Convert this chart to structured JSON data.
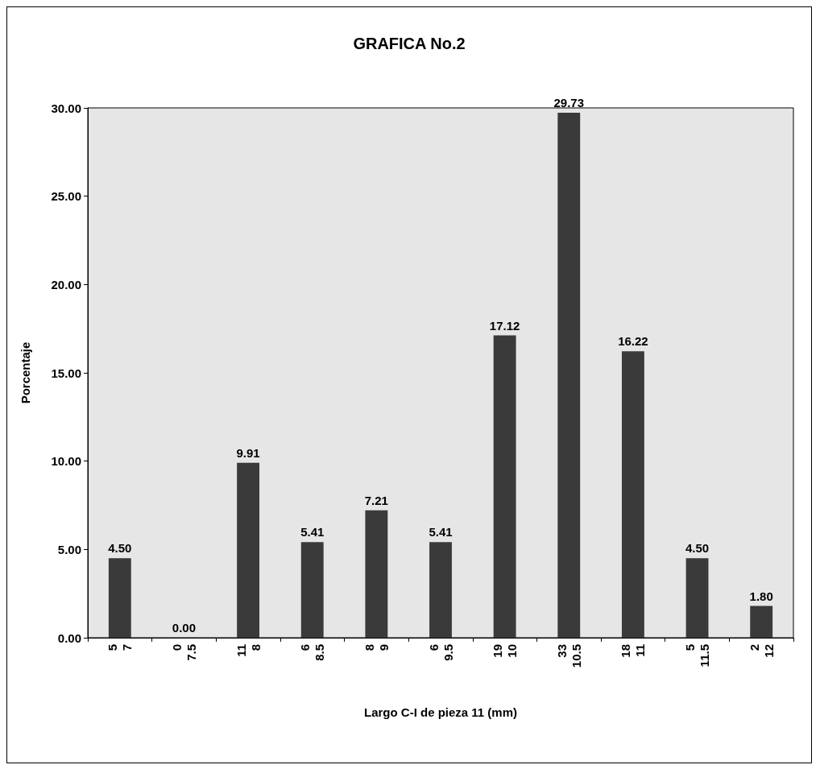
{
  "chart_data": {
    "type": "bar",
    "title": "GRAFICA No.2",
    "xlabel": "Largo C-I de pieza 11 (mm)",
    "ylabel": "Porcentaje",
    "categories": [
      "5\n7",
      "0\n7.5",
      "11\n8",
      "6\n8.5",
      "8\n9",
      "6\n9.5",
      "19\n10",
      "33\n10.5",
      "18\n11",
      "5\n11.5",
      "2\n12"
    ],
    "values": [
      4.5,
      0.0,
      9.91,
      5.41,
      7.21,
      5.41,
      17.12,
      29.73,
      16.22,
      4.5,
      1.8
    ],
    "value_labels": [
      "4.50",
      "0.00",
      "9.91",
      "5.41",
      "7.21",
      "5.41",
      "17.12",
      "29.73",
      "16.22",
      "4.50",
      "1.80"
    ],
    "color": "#3a3a3a",
    "ylim": [
      0,
      30
    ],
    "yticks": [
      {
        "value": 0,
        "label": "0.00"
      },
      {
        "value": 5,
        "label": "5.00"
      },
      {
        "value": 10,
        "label": "10.00"
      },
      {
        "value": 15,
        "label": "15.00"
      },
      {
        "value": 20,
        "label": "20.00"
      },
      {
        "value": 25,
        "label": "25.00"
      },
      {
        "value": 30,
        "label": "30.00"
      }
    ],
    "grid": false
  }
}
